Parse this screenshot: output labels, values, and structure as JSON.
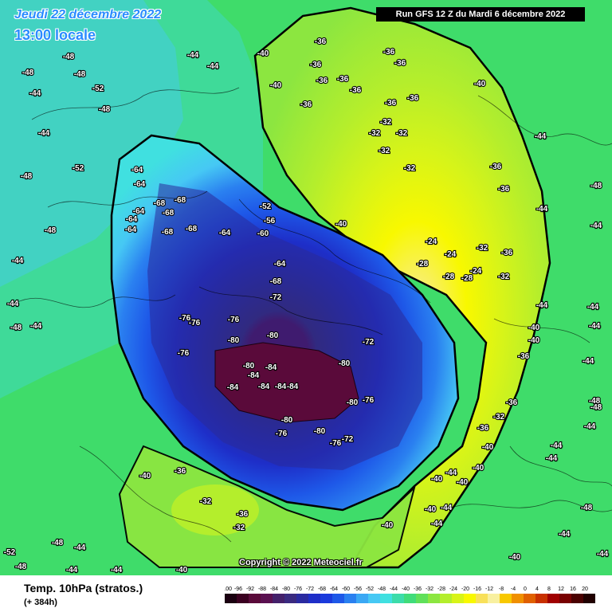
{
  "header": {
    "date": "Jeudi 22 décembre 2022",
    "local_time": "13:00 locale",
    "run": "Run GFS 12 Z du Mardi 6 décembre 2022"
  },
  "map": {
    "copyright": "Copyright © 2022 Meteociel.fr",
    "colors": {
      "ocean_band": "#3fdc6a",
      "cold_core": "#5a0a3a",
      "warm_region": "#f8f800"
    },
    "contour_labels": [
      {
        "t": "-48"
      },
      {
        "t": "-44"
      },
      {
        "t": "-44"
      },
      {
        "t": "-48"
      },
      {
        "t": "-48"
      },
      {
        "t": "-52"
      },
      {
        "t": "-48"
      },
      {
        "t": "-44"
      },
      {
        "t": "-44"
      },
      {
        "t": "-48"
      },
      {
        "t": "-48"
      },
      {
        "t": "-44"
      },
      {
        "t": "-44"
      },
      {
        "t": "-44"
      },
      {
        "t": "-48"
      },
      {
        "t": "-40"
      },
      {
        "t": "-40"
      },
      {
        "t": "-36"
      },
      {
        "t": "-36"
      },
      {
        "t": "-36"
      },
      {
        "t": "-36"
      },
      {
        "t": "-36"
      },
      {
        "t": "-36"
      },
      {
        "t": "-36"
      },
      {
        "t": "-36"
      },
      {
        "t": "-36"
      },
      {
        "t": "-36"
      },
      {
        "t": "-32"
      },
      {
        "t": "-32"
      },
      {
        "t": "-32"
      },
      {
        "t": "-32"
      },
      {
        "t": "-32"
      },
      {
        "t": "-40"
      },
      {
        "t": "-44"
      },
      {
        "t": "-44"
      },
      {
        "t": "-36"
      },
      {
        "t": "-36"
      },
      {
        "t": "-40"
      },
      {
        "t": "-48"
      },
      {
        "t": "-44"
      },
      {
        "t": "-44"
      },
      {
        "t": "-52"
      },
      {
        "t": "-64"
      },
      {
        "t": "-64"
      },
      {
        "t": "-68"
      },
      {
        "t": "-68"
      },
      {
        "t": "-64"
      },
      {
        "t": "-68"
      },
      {
        "t": "-64"
      },
      {
        "t": "-64"
      },
      {
        "t": "-68"
      },
      {
        "t": "-68"
      },
      {
        "t": "-64"
      },
      {
        "t": "-52"
      },
      {
        "t": "-56"
      },
      {
        "t": "-60"
      },
      {
        "t": "-64"
      },
      {
        "t": "-68"
      },
      {
        "t": "-72"
      },
      {
        "t": "-76"
      },
      {
        "t": "-76"
      },
      {
        "t": "-76"
      },
      {
        "t": "-76"
      },
      {
        "t": "-80"
      },
      {
        "t": "-80"
      },
      {
        "t": "-80"
      },
      {
        "t": "-84"
      },
      {
        "t": "-84"
      },
      {
        "t": "-84"
      },
      {
        "t": "-84"
      },
      {
        "t": "-84"
      },
      {
        "t": "-84"
      },
      {
        "t": "-80"
      },
      {
        "t": "-80"
      },
      {
        "t": "-80"
      },
      {
        "t": "-76"
      },
      {
        "t": "-76"
      },
      {
        "t": "-72"
      },
      {
        "t": "-72"
      },
      {
        "t": "-80"
      },
      {
        "t": "-76"
      },
      {
        "t": "-24"
      },
      {
        "t": "-24"
      },
      {
        "t": "-28"
      },
      {
        "t": "-28"
      },
      {
        "t": "-24"
      },
      {
        "t": "-28"
      },
      {
        "t": "-32"
      },
      {
        "t": "-32"
      },
      {
        "t": "-36"
      },
      {
        "t": "-36"
      },
      {
        "t": "-40"
      },
      {
        "t": "-40"
      },
      {
        "t": "-44"
      },
      {
        "t": "-44"
      },
      {
        "t": "-48"
      },
      {
        "t": "-44"
      },
      {
        "t": "-36"
      },
      {
        "t": "-32"
      },
      {
        "t": "-36"
      },
      {
        "t": "-40"
      },
      {
        "t": "-40"
      },
      {
        "t": "-40"
      },
      {
        "t": "-44"
      },
      {
        "t": "-44"
      },
      {
        "t": "-40"
      },
      {
        "t": "-36"
      },
      {
        "t": "-32"
      },
      {
        "t": "-32"
      },
      {
        "t": "-36"
      },
      {
        "t": "-40"
      },
      {
        "t": "-40"
      },
      {
        "t": "-44"
      },
      {
        "t": "-44"
      },
      {
        "t": "-48"
      },
      {
        "t": "-52"
      },
      {
        "t": "-48"
      },
      {
        "t": "-44"
      },
      {
        "t": "-44"
      },
      {
        "t": "-48"
      },
      {
        "t": "-40"
      },
      {
        "t": "-44"
      },
      {
        "t": "-40"
      },
      {
        "t": "-44"
      },
      {
        "t": "-44"
      },
      {
        "t": "-48"
      },
      {
        "t": "-44"
      },
      {
        "t": "-40"
      },
      {
        "t": "-44"
      }
    ]
  },
  "footer": {
    "title": "Temp. 10hPa (stratos.)",
    "forecast_hour": "(+ 384h)"
  },
  "legend": {
    "values": [
      "-100",
      "-96",
      "-92",
      "-88",
      "-84",
      "-80",
      "-76",
      "-72",
      "-68",
      "-64",
      "-60",
      "-56",
      "-52",
      "-48",
      "-44",
      "-40",
      "-36",
      "-32",
      "-28",
      "-24",
      "-20",
      "-16",
      "-12",
      "-8",
      "-4",
      "0",
      "4",
      "8",
      "12",
      "16",
      "20"
    ],
    "colors": [
      "#1a0010",
      "#3a0020",
      "#5a0a3a",
      "#5a1050",
      "#44206a",
      "#3a2a80",
      "#2a2aa0",
      "#1e2ec8",
      "#1a3adc",
      "#1e58e8",
      "#2a80f0",
      "#3aa8f4",
      "#46c8f4",
      "#40e0e0",
      "#3cdcaa",
      "#40dc7a",
      "#60e05a",
      "#8ce640",
      "#b4ee2c",
      "#d8f418",
      "#f8f800",
      "#f8e05a",
      "#f8f0a0",
      "#f8c800",
      "#f09000",
      "#e06000",
      "#c83000",
      "#a00000",
      "#780000",
      "#4a0000",
      "#200000"
    ]
  }
}
